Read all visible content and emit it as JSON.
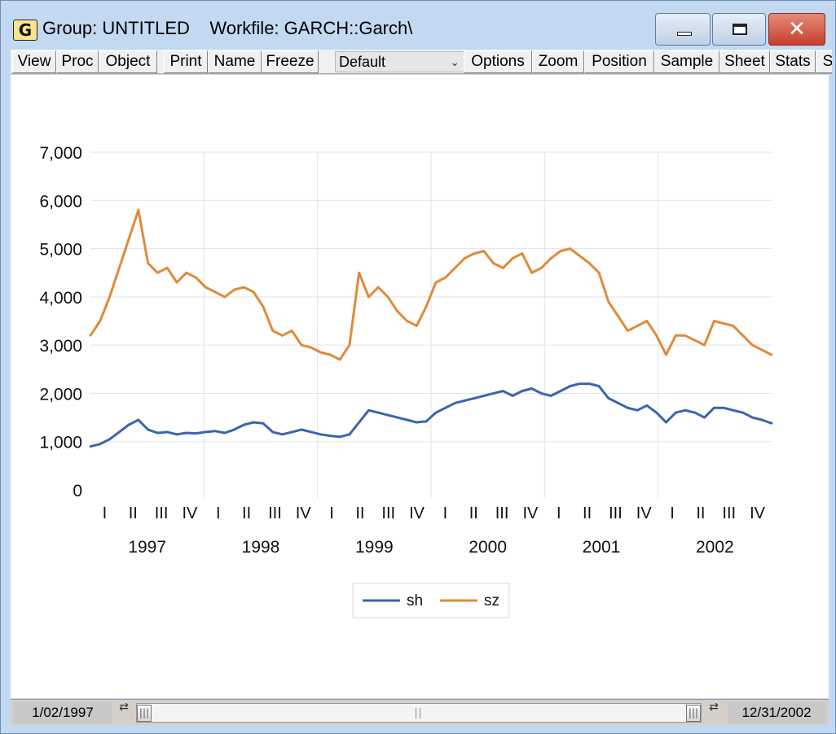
{
  "window": {
    "icon_letter": "G",
    "title": "Group: UNTITLED    Workfile: GARCH::Garch\\",
    "minimize_glyph": "",
    "close_glyph": "✕"
  },
  "toolbar": {
    "view": "View",
    "proc": "Proc",
    "object": "Object",
    "print": "Print",
    "name": "Name",
    "freeze": "Freeze",
    "display_select": "Default",
    "options": "Options",
    "zoom": "Zoom",
    "position": "Position",
    "sample": "Sample",
    "sheet": "Sheet",
    "stats": "Stats",
    "overflow": "S"
  },
  "colors": {
    "sh": "#3a65ad",
    "sz": "#e08a3a",
    "grid": "#e3e3e3",
    "titlebar": "#c3d9f1"
  },
  "icons": [
    "minimize-icon",
    "maximize-icon",
    "close-icon",
    "dropdown-chevron-icon",
    "scroll-left-icon",
    "scroll-right-icon"
  ],
  "chart_data": {
    "type": "line",
    "title": "",
    "xlabel": "",
    "ylabel": "",
    "ylim": [
      0,
      7000
    ],
    "y_ticks": [
      "7,000",
      "6,000",
      "5,000",
      "4,000",
      "3,000",
      "2,000",
      "1,000",
      "0"
    ],
    "grid": true,
    "legend_position": "bottom-center",
    "x_quarter_labels": [
      "I",
      "II",
      "III",
      "IV"
    ],
    "x_years": [
      "1997",
      "1998",
      "1999",
      "2000",
      "2001",
      "2002"
    ],
    "x": [
      "1997-01",
      "1997-02",
      "1997-03",
      "1997-04",
      "1997-05",
      "1997-06",
      "1997-07",
      "1997-08",
      "1997-09",
      "1997-10",
      "1997-11",
      "1997-12",
      "1998-01",
      "1998-02",
      "1998-03",
      "1998-04",
      "1998-05",
      "1998-06",
      "1998-07",
      "1998-08",
      "1998-09",
      "1998-10",
      "1998-11",
      "1998-12",
      "1999-01",
      "1999-02",
      "1999-03",
      "1999-04",
      "1999-05",
      "1999-06",
      "1999-07",
      "1999-08",
      "1999-09",
      "1999-10",
      "1999-11",
      "1999-12",
      "2000-01",
      "2000-02",
      "2000-03",
      "2000-04",
      "2000-05",
      "2000-06",
      "2000-07",
      "2000-08",
      "2000-09",
      "2000-10",
      "2000-11",
      "2000-12",
      "2001-01",
      "2001-02",
      "2001-03",
      "2001-04",
      "2001-05",
      "2001-06",
      "2001-07",
      "2001-08",
      "2001-09",
      "2001-10",
      "2001-11",
      "2001-12",
      "2002-01",
      "2002-02",
      "2002-03",
      "2002-04",
      "2002-05",
      "2002-06",
      "2002-07",
      "2002-08",
      "2002-09",
      "2002-10",
      "2002-11",
      "2002-12"
    ],
    "series": [
      {
        "name": "sh",
        "values": [
          900,
          950,
          1050,
          1200,
          1350,
          1450,
          1250,
          1180,
          1200,
          1150,
          1180,
          1170,
          1200,
          1220,
          1180,
          1250,
          1350,
          1400,
          1380,
          1200,
          1150,
          1200,
          1250,
          1200,
          1150,
          1120,
          1100,
          1150,
          1400,
          1650,
          1600,
          1550,
          1500,
          1450,
          1400,
          1420,
          1600,
          1700,
          1800,
          1850,
          1900,
          1950,
          2000,
          2050,
          1950,
          2050,
          2100,
          2000,
          1950,
          2050,
          2150,
          2200,
          2200,
          2150,
          1900,
          1800,
          1700,
          1650,
          1750,
          1600,
          1400,
          1600,
          1650,
          1600,
          1500,
          1700,
          1700,
          1650,
          1600,
          1500,
          1450,
          1380
        ]
      },
      {
        "name": "sz",
        "values": [
          3200,
          3500,
          4000,
          4600,
          5200,
          5800,
          4700,
          4500,
          4600,
          4300,
          4500,
          4400,
          4200,
          4100,
          4000,
          4150,
          4200,
          4100,
          3800,
          3300,
          3200,
          3300,
          3000,
          2950,
          2850,
          2800,
          2700,
          3000,
          4500,
          4000,
          4200,
          4000,
          3700,
          3500,
          3400,
          3800,
          4300,
          4400,
          4600,
          4800,
          4900,
          4950,
          4700,
          4600,
          4800,
          4900,
          4500,
          4600,
          4800,
          4950,
          5000,
          4850,
          4700,
          4500,
          3900,
          3600,
          3300,
          3400,
          3500,
          3200,
          2800,
          3200,
          3200,
          3100,
          3000,
          3500,
          3450,
          3400,
          3200,
          3000,
          2900,
          2800
        ]
      }
    ]
  },
  "statusbar": {
    "start_date": "1/02/1997",
    "end_date": "12/31/2002",
    "left_arrows": "⇄",
    "right_arrows": "⇄"
  }
}
